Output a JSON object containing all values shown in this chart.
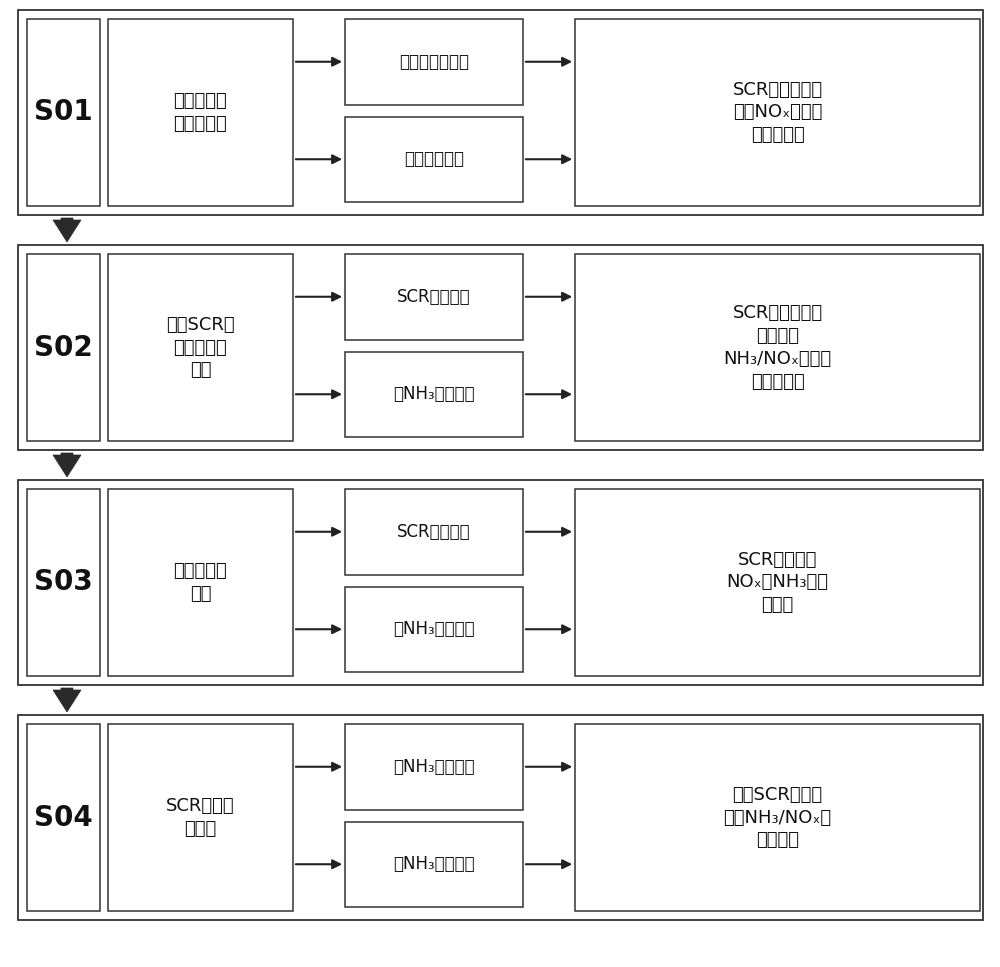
{
  "bg_color": "#ffffff",
  "border_color": "#222222",
  "text_color": "#111111",
  "rows": [
    {
      "step": "S01",
      "box1": "建立锅炉三\n维数值模型",
      "box2_top": "炉膛和烟道结构",
      "box2_bot": "锅炉运行工况",
      "box3": "SCR系统入口流\n动和NOₓ分布均\n匀性和偏差"
    },
    {
      "step": "S02",
      "box1": "建立SCR系\n统三维数值\n模型",
      "box2_top": "SCR系统结构",
      "box2_bot": "喷NH₃运行参数",
      "box3": "SCR系统反应器\n中流动和\nNH₃/NOₓ分布均\n匀性和偏差"
    },
    {
      "step": "S03",
      "box1": "网格法试验\n测量",
      "box2_top": "SCR系统结构",
      "box2_bot": "喷NH₃运行参数",
      "box3": "SCR系统出口\nNOₓ和NH₃浓度\n和偏差"
    },
    {
      "step": "S04",
      "box1": "SCR系统运\n行优化",
      "box2_top": "喷NH₃位置优化",
      "box2_bot": "喷NH₃流量优化",
      "box3": "改善SCR系统流\n动和NH₃/NOₓ分\n布均匀性"
    }
  ],
  "figsize": [
    10.0,
    9.67
  ],
  "dpi": 100
}
